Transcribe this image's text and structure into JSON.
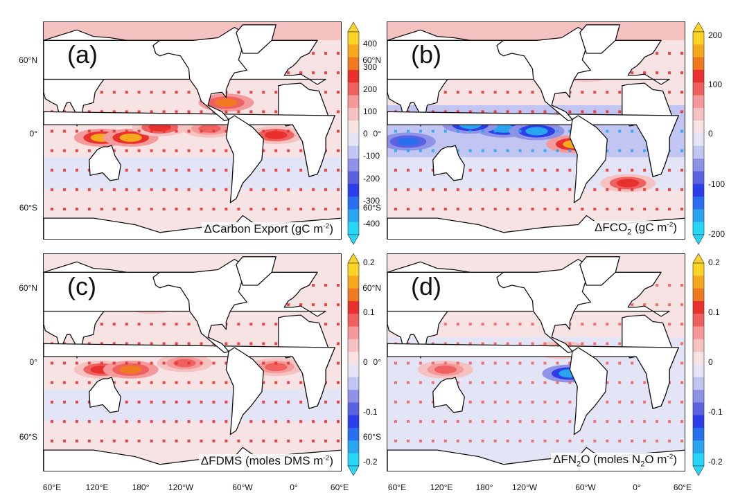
{
  "latitude_labels": [
    "60°N",
    "0°",
    "60°S"
  ],
  "longitude_labels": [
    "60°E",
    "120°E",
    "180°",
    "120°W",
    "60°W",
    "0°",
    "60°E"
  ],
  "panels": [
    {
      "id": "a",
      "letter": "(a)",
      "title_text": "ΔCarbon Export (gC m",
      "title_sup": "-2",
      "title_end": ")",
      "colorbar_ticks": [
        "400",
        "300",
        "200",
        "100",
        "0",
        "-100",
        "-200",
        "-300",
        "-400"
      ],
      "colorbar_range": [
        -450,
        450
      ],
      "hotspots": [
        {
          "lon": 130,
          "lat": -5,
          "value": 0.8
        },
        {
          "lon": 165,
          "lat": -5,
          "value": 0.9
        },
        {
          "lon": 200,
          "lat": 3,
          "value": 0.6
        },
        {
          "lon": 260,
          "lat": 2,
          "value": 0.5
        },
        {
          "lon": 340,
          "lat": -3,
          "value": 0.6
        },
        {
          "lon": 210,
          "lat": 55,
          "value": 0.7
        },
        {
          "lon": 170,
          "lat": 50,
          "value": 0.5
        },
        {
          "lon": 280,
          "lat": 22,
          "value": 0.7
        }
      ]
    },
    {
      "id": "b",
      "letter": "(b)",
      "title_text": "ΔFCO",
      "title_sub": "2",
      "title_mid": " (gC m",
      "title_sup": "-2",
      "title_end": ")",
      "colorbar_ticks": [
        "200",
        "100",
        "0",
        "-100",
        "-200"
      ],
      "colorbar_range": [
        -225,
        225
      ],
      "hotspots": [
        {
          "lon": 200,
          "lat": 2,
          "value": -0.9
        },
        {
          "lon": 240,
          "lat": 0,
          "value": -0.9
        },
        {
          "lon": 160,
          "lat": 5,
          "value": -0.8
        },
        {
          "lon": 85,
          "lat": -8,
          "value": -0.7
        },
        {
          "lon": 285,
          "lat": -10,
          "value": 0.9
        },
        {
          "lon": 350,
          "lat": -40,
          "value": 0.6
        },
        {
          "lon": 220,
          "lat": 58,
          "value": 0.8
        },
        {
          "lon": 300,
          "lat": 45,
          "value": 0.6
        }
      ]
    },
    {
      "id": "c",
      "letter": "(c)",
      "title_text": "ΔFDMS (moles DMS m",
      "title_sup": "-2",
      "title_end": ")",
      "colorbar_ticks": [
        "0.2",
        "0.1",
        "0",
        "-0.1",
        "-0.2"
      ],
      "colorbar_range": [
        -0.225,
        0.225
      ],
      "hotspots": [
        {
          "lon": 130,
          "lat": -5,
          "value": 0.6
        },
        {
          "lon": 165,
          "lat": -5,
          "value": 0.7
        },
        {
          "lon": 230,
          "lat": 0,
          "value": 0.5
        },
        {
          "lon": 340,
          "lat": -3,
          "value": 0.4
        },
        {
          "lon": 190,
          "lat": 45,
          "value": 0.4
        }
      ]
    },
    {
      "id": "d",
      "letter": "(d)",
      "title_text": "ΔFN",
      "title_sub": "2",
      "title_mid": "O (moles N",
      "title_sub2": "2",
      "title_mid2": "O m",
      "title_sup": "-2",
      "title_end": ")",
      "colorbar_ticks": [
        "0.2",
        "0.1",
        "0",
        "-0.1",
        "-0.2"
      ],
      "colorbar_range": [
        -0.225,
        0.225
      ],
      "hotspots": [
        {
          "lon": 280,
          "lat": -8,
          "value": -0.8
        },
        {
          "lon": 270,
          "lat": 10,
          "value": 0.5
        },
        {
          "lon": 130,
          "lat": -5,
          "value": 0.4
        }
      ]
    }
  ]
}
